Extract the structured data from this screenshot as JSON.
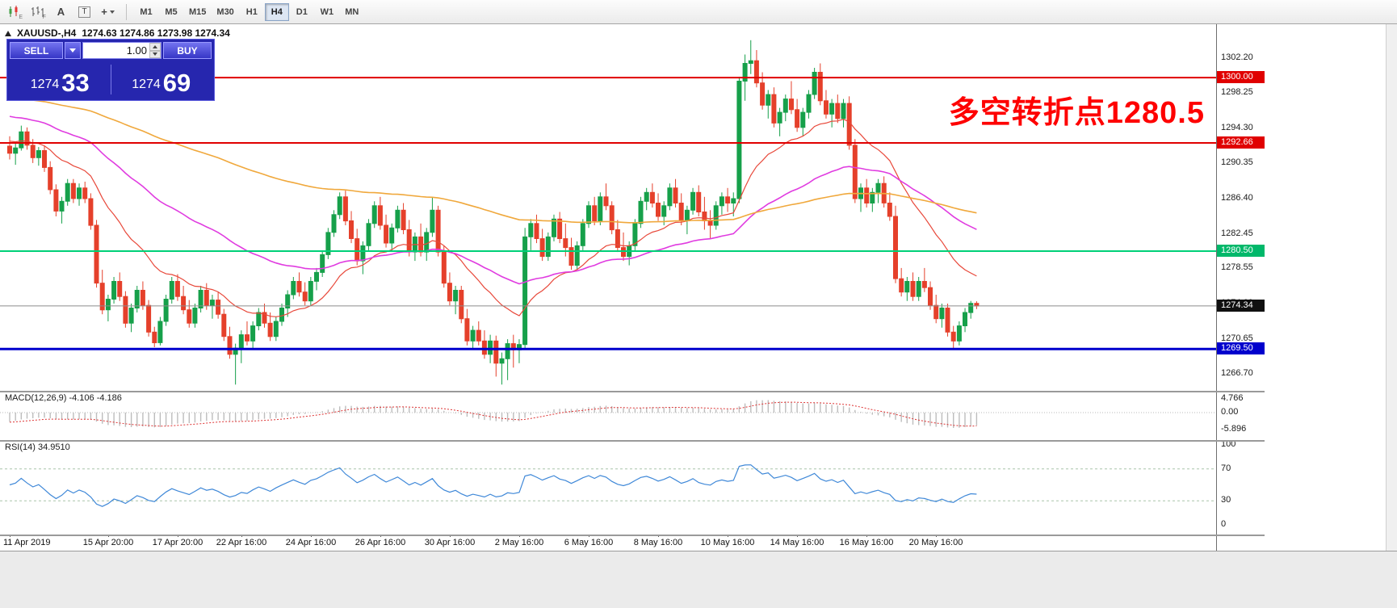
{
  "ui": {
    "toolbar": {
      "tools": [
        {
          "name": "candlestick-chart-icon",
          "sub": "E"
        },
        {
          "name": "bar-chart-icon",
          "sub": "F"
        },
        {
          "name": "letter-a-icon",
          "glyph": "A"
        },
        {
          "name": "text-box-icon",
          "glyph": "T"
        },
        {
          "name": "crosshair-icon",
          "glyph": "+"
        }
      ],
      "timeframes": [
        "M1",
        "M5",
        "M15",
        "M30",
        "H1",
        "H4",
        "D1",
        "W1",
        "MN"
      ],
      "active_timeframe": "H4"
    },
    "info_line": {
      "symbol": "XAUUSD-,H4",
      "ohlc": "1274.63 1274.86 1273.98 1274.34"
    },
    "trade_panel": {
      "sell_label": "SELL",
      "buy_label": "BUY",
      "volume": "1.00",
      "sell_price_small": "1274",
      "sell_price_big": "33",
      "buy_price_small": "1274",
      "buy_price_big": "69"
    },
    "annotation": "多空转折点1280.5"
  },
  "chart_data": {
    "type": "candlestick",
    "symbol": "XAUUSD-",
    "timeframe": "H4",
    "price_range": [
      1264.8,
      1306.0
    ],
    "colors": {
      "up": "#16a04a",
      "down": "#e5402b",
      "background": "#ffffff"
    },
    "candles": [
      [
        1292.3,
        1293.4,
        1290.8,
        1291.5
      ],
      [
        1291.5,
        1292.6,
        1290.2,
        1292.1
      ],
      [
        1292.1,
        1294.6,
        1291.8,
        1293.9
      ],
      [
        1293.9,
        1294.4,
        1291.9,
        1292.4
      ],
      [
        1292.4,
        1293.1,
        1290.4,
        1291.0
      ],
      [
        1291.0,
        1292.2,
        1290.1,
        1291.8
      ],
      [
        1291.8,
        1292.3,
        1289.4,
        1289.9
      ],
      [
        1289.9,
        1290.6,
        1286.9,
        1287.4
      ],
      [
        1287.4,
        1288.0,
        1284.4,
        1285.0
      ],
      [
        1285.0,
        1286.6,
        1283.6,
        1286.1
      ],
      [
        1286.1,
        1288.6,
        1285.6,
        1288.1
      ],
      [
        1288.1,
        1288.6,
        1285.9,
        1286.4
      ],
      [
        1286.4,
        1288.1,
        1285.6,
        1287.6
      ],
      [
        1287.6,
        1288.3,
        1285.9,
        1286.4
      ],
      [
        1286.4,
        1287.0,
        1282.9,
        1283.4
      ],
      [
        1283.4,
        1284.0,
        1276.4,
        1276.9
      ],
      [
        1276.9,
        1278.4,
        1273.4,
        1273.9
      ],
      [
        1273.9,
        1275.6,
        1272.6,
        1275.1
      ],
      [
        1275.1,
        1277.6,
        1274.6,
        1277.1
      ],
      [
        1277.1,
        1278.1,
        1274.9,
        1275.4
      ],
      [
        1275.4,
        1276.0,
        1271.9,
        1272.4
      ],
      [
        1272.4,
        1274.6,
        1271.4,
        1274.1
      ],
      [
        1274.1,
        1276.6,
        1273.6,
        1276.1
      ],
      [
        1276.1,
        1277.1,
        1273.9,
        1274.4
      ],
      [
        1274.4,
        1275.0,
        1270.9,
        1271.4
      ],
      [
        1271.4,
        1272.0,
        1269.7,
        1270.2
      ],
      [
        1270.2,
        1273.1,
        1269.9,
        1272.6
      ],
      [
        1272.6,
        1275.6,
        1272.1,
        1275.1
      ],
      [
        1275.1,
        1277.6,
        1274.6,
        1277.1
      ],
      [
        1277.1,
        1277.9,
        1274.9,
        1275.4
      ],
      [
        1275.4,
        1276.6,
        1273.4,
        1273.9
      ],
      [
        1273.9,
        1275.0,
        1271.9,
        1272.4
      ],
      [
        1272.4,
        1274.6,
        1271.9,
        1274.1
      ],
      [
        1274.1,
        1276.6,
        1273.6,
        1276.1
      ],
      [
        1276.1,
        1276.9,
        1273.9,
        1274.4
      ],
      [
        1274.4,
        1275.6,
        1272.9,
        1275.0
      ],
      [
        1275.0,
        1275.9,
        1272.9,
        1273.4
      ],
      [
        1273.4,
        1274.0,
        1270.4,
        1270.9
      ],
      [
        1270.9,
        1272.0,
        1268.4,
        1268.9
      ],
      [
        1268.9,
        1270.1,
        1265.5,
        1269.6
      ],
      [
        1269.6,
        1271.6,
        1267.9,
        1271.1
      ],
      [
        1271.1,
        1272.6,
        1269.9,
        1270.4
      ],
      [
        1270.4,
        1272.6,
        1269.4,
        1272.1
      ],
      [
        1272.1,
        1274.1,
        1271.6,
        1273.6
      ],
      [
        1273.6,
        1274.6,
        1271.9,
        1272.4
      ],
      [
        1272.4,
        1273.6,
        1270.4,
        1270.9
      ],
      [
        1270.9,
        1273.1,
        1270.4,
        1272.6
      ],
      [
        1272.6,
        1274.6,
        1272.1,
        1274.1
      ],
      [
        1274.1,
        1276.1,
        1273.1,
        1275.6
      ],
      [
        1275.6,
        1277.6,
        1275.1,
        1277.1
      ],
      [
        1277.1,
        1278.1,
        1275.4,
        1275.9
      ],
      [
        1275.9,
        1277.0,
        1274.4,
        1274.9
      ],
      [
        1274.9,
        1277.6,
        1274.4,
        1277.1
      ],
      [
        1277.1,
        1278.6,
        1276.1,
        1278.1
      ],
      [
        1278.1,
        1280.6,
        1277.6,
        1280.1
      ],
      [
        1280.1,
        1283.1,
        1279.6,
        1282.6
      ],
      [
        1282.6,
        1285.1,
        1282.1,
        1284.6
      ],
      [
        1284.6,
        1287.1,
        1284.1,
        1286.6
      ],
      [
        1286.6,
        1287.3,
        1283.4,
        1283.9
      ],
      [
        1283.9,
        1285.0,
        1281.4,
        1281.9
      ],
      [
        1281.9,
        1283.0,
        1278.9,
        1279.4
      ],
      [
        1279.4,
        1281.6,
        1277.9,
        1281.1
      ],
      [
        1281.1,
        1284.1,
        1280.6,
        1283.6
      ],
      [
        1283.6,
        1286.1,
        1283.1,
        1285.6
      ],
      [
        1285.6,
        1286.6,
        1282.9,
        1283.4
      ],
      [
        1283.4,
        1284.6,
        1280.9,
        1281.4
      ],
      [
        1281.4,
        1283.6,
        1280.4,
        1283.1
      ],
      [
        1283.1,
        1285.6,
        1282.6,
        1285.1
      ],
      [
        1285.1,
        1285.9,
        1282.4,
        1282.9
      ],
      [
        1282.9,
        1284.0,
        1279.9,
        1280.4
      ],
      [
        1280.4,
        1282.6,
        1279.4,
        1282.1
      ],
      [
        1282.1,
        1283.6,
        1279.9,
        1280.4
      ],
      [
        1280.4,
        1283.1,
        1279.4,
        1282.6
      ],
      [
        1282.6,
        1286.6,
        1282.1,
        1285.1
      ],
      [
        1285.1,
        1285.6,
        1279.9,
        1280.4
      ],
      [
        1280.4,
        1281.1,
        1276.4,
        1276.9
      ],
      [
        1276.9,
        1278.1,
        1274.4,
        1274.9
      ],
      [
        1274.9,
        1276.6,
        1273.4,
        1276.1
      ],
      [
        1276.1,
        1276.6,
        1272.4,
        1272.9
      ],
      [
        1272.9,
        1274.0,
        1269.9,
        1270.4
      ],
      [
        1270.4,
        1272.1,
        1269.4,
        1271.6
      ],
      [
        1271.6,
        1272.6,
        1269.9,
        1270.4
      ],
      [
        1270.4,
        1271.6,
        1268.4,
        1268.9
      ],
      [
        1268.9,
        1271.1,
        1267.9,
        1270.4
      ],
      [
        1270.4,
        1271.0,
        1266.4,
        1267.9
      ],
      [
        1267.9,
        1269.1,
        1265.5,
        1268.4
      ],
      [
        1268.4,
        1270.6,
        1266.0,
        1270.1
      ],
      [
        1270.1,
        1271.1,
        1267.4,
        1269.4
      ],
      [
        1269.4,
        1270.6,
        1267.9,
        1270.0
      ],
      [
        1270.0,
        1283.1,
        1269.5,
        1282.1
      ],
      [
        1282.1,
        1284.1,
        1280.6,
        1283.6
      ],
      [
        1283.6,
        1284.6,
        1281.4,
        1281.9
      ],
      [
        1281.9,
        1283.0,
        1279.4,
        1279.9
      ],
      [
        1279.9,
        1282.6,
        1279.4,
        1282.1
      ],
      [
        1282.1,
        1284.6,
        1281.6,
        1284.1
      ],
      [
        1284.1,
        1284.9,
        1281.4,
        1281.9
      ],
      [
        1281.9,
        1283.6,
        1279.9,
        1280.9
      ],
      [
        1280.9,
        1282.0,
        1278.4,
        1278.9
      ],
      [
        1278.9,
        1281.6,
        1278.4,
        1281.1
      ],
      [
        1281.1,
        1284.1,
        1280.6,
        1283.6
      ],
      [
        1283.6,
        1286.1,
        1283.1,
        1285.6
      ],
      [
        1285.6,
        1286.6,
        1283.4,
        1283.9
      ],
      [
        1283.9,
        1287.1,
        1283.4,
        1286.6
      ],
      [
        1286.6,
        1288.1,
        1285.1,
        1285.6
      ],
      [
        1285.6,
        1286.1,
        1282.4,
        1282.9
      ],
      [
        1282.9,
        1284.0,
        1280.4,
        1280.9
      ],
      [
        1280.9,
        1282.6,
        1279.4,
        1279.9
      ],
      [
        1279.9,
        1281.6,
        1278.9,
        1281.1
      ],
      [
        1281.1,
        1284.1,
        1280.6,
        1283.6
      ],
      [
        1283.6,
        1286.6,
        1283.1,
        1286.1
      ],
      [
        1286.1,
        1287.6,
        1285.1,
        1287.1
      ],
      [
        1287.1,
        1288.1,
        1285.4,
        1285.9
      ],
      [
        1285.9,
        1287.0,
        1283.9,
        1284.4
      ],
      [
        1284.4,
        1286.1,
        1283.4,
        1285.6
      ],
      [
        1285.6,
        1288.1,
        1285.1,
        1287.6
      ],
      [
        1287.6,
        1288.6,
        1285.4,
        1285.9
      ],
      [
        1285.9,
        1287.0,
        1283.4,
        1283.9
      ],
      [
        1283.9,
        1285.6,
        1282.4,
        1285.1
      ],
      [
        1285.1,
        1287.6,
        1284.6,
        1287.1
      ],
      [
        1287.1,
        1287.9,
        1284.4,
        1284.9
      ],
      [
        1284.9,
        1286.6,
        1282.9,
        1283.9
      ],
      [
        1283.9,
        1285.1,
        1281.9,
        1283.4
      ],
      [
        1283.4,
        1286.1,
        1282.9,
        1285.6
      ],
      [
        1285.6,
        1287.1,
        1284.6,
        1286.6
      ],
      [
        1286.6,
        1287.6,
        1284.9,
        1285.9
      ],
      [
        1285.9,
        1287.1,
        1284.4,
        1286.4
      ],
      [
        1286.4,
        1300.1,
        1285.9,
        1299.6
      ],
      [
        1299.6,
        1302.6,
        1297.4,
        1301.6
      ],
      [
        1301.6,
        1304.2,
        1300.4,
        1301.9
      ],
      [
        1301.9,
        1303.1,
        1298.9,
        1299.4
      ],
      [
        1299.4,
        1300.6,
        1296.4,
        1296.9
      ],
      [
        1296.9,
        1298.6,
        1295.4,
        1298.1
      ],
      [
        1298.1,
        1298.9,
        1294.4,
        1294.9
      ],
      [
        1294.9,
        1296.6,
        1293.4,
        1296.1
      ],
      [
        1296.1,
        1298.1,
        1295.1,
        1297.6
      ],
      [
        1297.6,
        1299.6,
        1295.9,
        1296.4
      ],
      [
        1296.4,
        1297.6,
        1293.9,
        1294.4
      ],
      [
        1294.4,
        1296.6,
        1293.4,
        1296.1
      ],
      [
        1296.1,
        1298.6,
        1295.4,
        1298.1
      ],
      [
        1298.1,
        1301.1,
        1297.6,
        1300.6
      ],
      [
        1300.6,
        1301.6,
        1296.9,
        1297.4
      ],
      [
        1297.4,
        1298.6,
        1295.4,
        1295.9
      ],
      [
        1295.9,
        1297.6,
        1294.4,
        1297.1
      ],
      [
        1297.1,
        1298.1,
        1294.9,
        1295.4
      ],
      [
        1295.4,
        1297.6,
        1294.4,
        1297.1
      ],
      [
        1297.1,
        1297.9,
        1291.9,
        1292.4
      ],
      [
        1292.4,
        1293.1,
        1285.9,
        1286.4
      ],
      [
        1286.4,
        1288.1,
        1284.9,
        1287.6
      ],
      [
        1287.6,
        1288.6,
        1285.4,
        1285.9
      ],
      [
        1285.9,
        1287.6,
        1284.9,
        1287.1
      ],
      [
        1287.1,
        1288.6,
        1285.9,
        1288.1
      ],
      [
        1288.1,
        1288.9,
        1285.4,
        1285.9
      ],
      [
        1285.9,
        1287.1,
        1283.9,
        1284.4
      ],
      [
        1284.4,
        1285.6,
        1276.9,
        1277.4
      ],
      [
        1277.4,
        1278.6,
        1275.4,
        1275.9
      ],
      [
        1275.9,
        1277.6,
        1274.9,
        1277.1
      ],
      [
        1277.1,
        1278.1,
        1274.9,
        1275.4
      ],
      [
        1275.4,
        1277.6,
        1274.9,
        1277.1
      ],
      [
        1277.1,
        1278.6,
        1275.9,
        1276.4
      ],
      [
        1276.4,
        1277.1,
        1273.9,
        1274.4
      ],
      [
        1274.4,
        1275.6,
        1272.4,
        1272.9
      ],
      [
        1272.9,
        1274.6,
        1271.9,
        1274.1
      ],
      [
        1274.1,
        1274.6,
        1270.9,
        1271.4
      ],
      [
        1271.4,
        1272.1,
        1269.5,
        1270.4
      ],
      [
        1270.4,
        1272.6,
        1269.9,
        1272.1
      ],
      [
        1272.1,
        1274.1,
        1271.4,
        1273.6
      ],
      [
        1273.6,
        1274.9,
        1272.9,
        1274.63
      ],
      [
        1274.63,
        1274.86,
        1273.98,
        1274.34
      ]
    ],
    "overlays": [
      {
        "name": "ma-fast",
        "type": "ema",
        "period": 20,
        "seed": 1293.0,
        "color": "#e8483a",
        "width": 1.2
      },
      {
        "name": "ma-mid",
        "type": "ema",
        "period": 55,
        "seed": 1295.8,
        "color": "#e03ce0",
        "width": 1.6
      },
      {
        "name": "ma-slow",
        "type": "ema",
        "period": 160,
        "seed": 1297.8,
        "color": "#f0a83c",
        "width": 1.6
      }
    ],
    "hlines": [
      {
        "name": "resistance-line-1300",
        "price": 1300.0,
        "color": "#e00000",
        "width": 2,
        "badge": "1300.00",
        "badge_bg": "#e00000"
      },
      {
        "name": "resistance-line-1292",
        "price": 1292.66,
        "color": "#e00000",
        "width": 2,
        "badge": "1292.66",
        "badge_bg": "#e00000"
      },
      {
        "name": "pivot-line-1280",
        "price": 1280.5,
        "color": "#00d077",
        "width": 2,
        "badge": "1280.50",
        "badge_bg": "#00b86a"
      },
      {
        "name": "support-line-1269",
        "price": 1269.5,
        "color": "#0000cd",
        "width": 3,
        "badge": "1269.50",
        "badge_bg": "#0000cd"
      },
      {
        "name": "current-price-line",
        "price": 1274.34,
        "color": "#8c8c8c",
        "width": 1,
        "badge": "1274.34",
        "badge_bg": "#101010"
      }
    ],
    "price_axis": {
      "ticks": [
        {
          "v": 1302.2,
          "label": "1302.20"
        },
        {
          "v": 1298.25,
          "label": "1298.25"
        },
        {
          "v": 1294.3,
          "label": "1294.30"
        },
        {
          "v": 1290.35,
          "label": "1290.35"
        },
        {
          "v": 1286.4,
          "label": "1286.40"
        },
        {
          "v": 1282.45,
          "label": "1282.45"
        },
        {
          "v": 1278.55,
          "label": "1278.55"
        },
        {
          "v": 1274.6,
          "label": "1274.60"
        },
        {
          "v": 1270.65,
          "label": "1270.65"
        },
        {
          "v": 1266.7,
          "label": "1266.70"
        }
      ]
    },
    "macd": {
      "label": "MACD(12,26,9) -4.106 -4.186",
      "fast": 12,
      "slow": 26,
      "signal_period": 9,
      "value_main": -4.106,
      "value_signal": -4.186,
      "range": [
        -8.8,
        6.6
      ],
      "hist_color": "#bdbdbd",
      "signal_color": "#dd3333",
      "zero_color": "#b8b8b8",
      "seed_fast_off": -1.2,
      "seed_slow_off": 2.3,
      "seed_signal": -3.3,
      "axis": [
        {
          "v": 4.766,
          "label": "4.766"
        },
        {
          "v": 0,
          "label": "0.00"
        },
        {
          "v": -5.896,
          "label": "-5.896"
        }
      ]
    },
    "rsi": {
      "label": "RSI(14) 34.9510",
      "period": 14,
      "value": 34.951,
      "color": "#3f88d8",
      "levels": [
        70,
        30
      ],
      "level_color": "#a9c4aa",
      "axis": [
        {
          "v": 100,
          "label": "100"
        },
        {
          "v": 70,
          "label": "70"
        },
        {
          "v": 30,
          "label": "30"
        },
        {
          "v": 0,
          "label": "0"
        }
      ]
    },
    "time_axis": [
      {
        "label": "11 Apr 2019",
        "i": 0
      },
      {
        "label": "15 Apr 20:00",
        "i": 17
      },
      {
        "label": "17 Apr 20:00",
        "i": 29
      },
      {
        "label": "22 Apr 16:00",
        "i": 40
      },
      {
        "label": "24 Apr 16:00",
        "i": 52
      },
      {
        "label": "26 Apr 16:00",
        "i": 64
      },
      {
        "label": "30 Apr 16:00",
        "i": 76
      },
      {
        "label": "2 May 16:00",
        "i": 88
      },
      {
        "label": "6 May 16:00",
        "i": 100
      },
      {
        "label": "8 May 16:00",
        "i": 112
      },
      {
        "label": "10 May 16:00",
        "i": 124
      },
      {
        "label": "14 May 16:00",
        "i": 136
      },
      {
        "label": "16 May 16:00",
        "i": 148
      },
      {
        "label": "20 May 16:00",
        "i": 160
      }
    ]
  }
}
